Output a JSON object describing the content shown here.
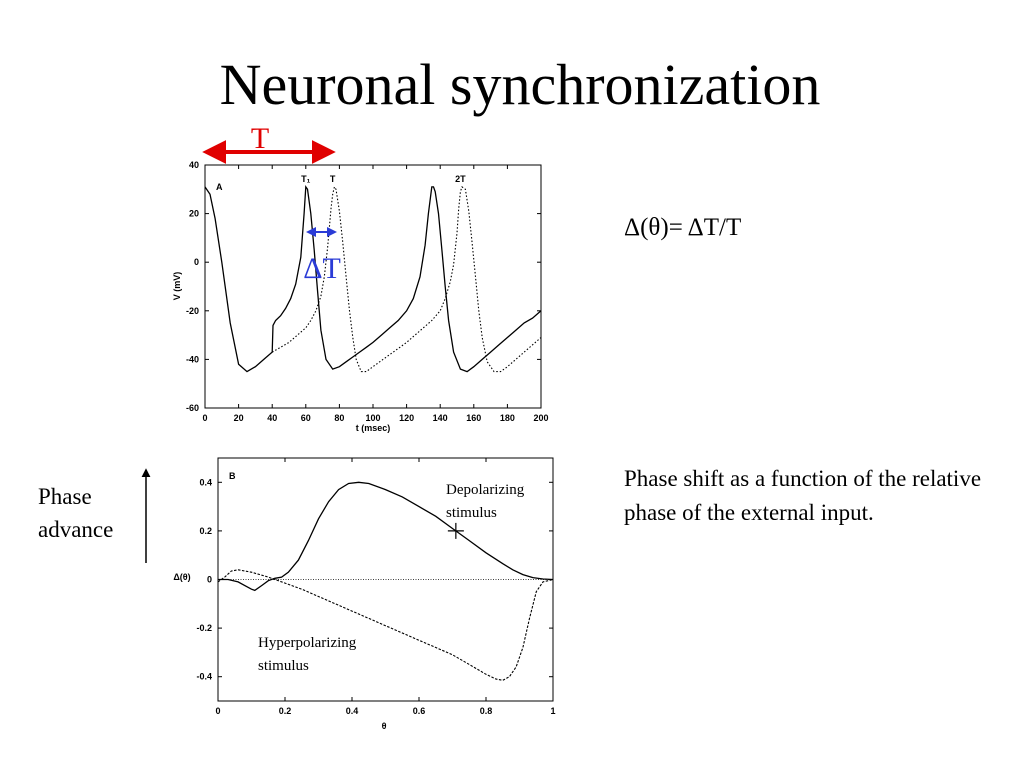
{
  "slide": {
    "title": "Neuronal synchronization",
    "formula": "Δ(θ)= ΔT/T",
    "caption": "Phase shift as a function of the relative phase of the external input.",
    "phase_label": [
      "Phase",
      "advance"
    ]
  },
  "colors": {
    "red_arrow": "#e00000",
    "blue_arrow": "#2a3bd6",
    "blue_text": "#2a3bd6",
    "red_text": "#e00000"
  },
  "chart_data": [
    {
      "type": "line",
      "panel_label": "A",
      "title": "",
      "xlabel": "t (msec)",
      "ylabel": "V (mV)",
      "xlim": [
        0,
        200
      ],
      "ylim": [
        -60,
        40
      ],
      "xticks": [
        0,
        20,
        40,
        60,
        80,
        100,
        120,
        140,
        160,
        180,
        200
      ],
      "yticks": [
        -60,
        -40,
        -20,
        0,
        20,
        40
      ],
      "top_labels": [
        {
          "text": "T₁",
          "x": 60
        },
        {
          "text": "T",
          "x": 76
        },
        {
          "text": "2T",
          "x": 152
        }
      ],
      "annotations": {
        "period_label": "T",
        "shift_label": "ΔT"
      },
      "series": [
        {
          "style": "solid",
          "x": [
            0,
            3,
            6,
            10,
            15,
            20,
            25,
            30,
            35,
            40,
            40.5,
            42,
            45,
            48,
            51,
            54,
            57,
            59,
            60,
            61,
            63,
            65,
            67,
            69,
            72,
            76,
            80,
            84,
            88,
            92,
            96,
            100,
            105,
            110,
            115,
            120,
            124,
            128,
            131,
            133,
            135,
            136,
            137,
            139,
            141,
            143,
            145,
            148,
            152,
            156,
            160,
            165,
            170,
            175,
            180,
            185,
            190,
            195,
            200
          ],
          "y": [
            31,
            28,
            18,
            0,
            -25,
            -42,
            -45,
            -43,
            -40,
            -37,
            -26,
            -24,
            -22,
            -19,
            -15,
            -9,
            2,
            20,
            31,
            30,
            20,
            5,
            -12,
            -28,
            -40,
            -44,
            -43,
            -41,
            -39,
            -37,
            -35,
            -33,
            -30,
            -27,
            -24,
            -20,
            -15,
            -6,
            7,
            20,
            31,
            31,
            29,
            20,
            5,
            -10,
            -24,
            -37,
            -44,
            -45,
            -43,
            -40,
            -37,
            -34,
            -31,
            -28,
            -25,
            -23,
            -20
          ]
        },
        {
          "style": "dotted",
          "x": [
            40,
            45,
            50,
            55,
            60,
            63,
            66,
            69,
            71,
            73,
            74,
            75,
            76,
            77,
            78,
            80,
            82,
            84,
            86,
            88,
            90,
            93,
            96,
            100,
            104,
            108,
            112,
            116,
            120,
            125,
            130,
            135,
            140,
            143,
            146,
            148,
            150,
            151,
            152,
            153,
            155,
            157,
            159,
            161,
            163,
            165,
            168,
            172,
            176,
            180,
            185,
            190,
            195,
            200
          ],
          "y": [
            -37,
            -35,
            -33,
            -30,
            -27,
            -24,
            -20,
            -14,
            -6,
            6,
            14,
            22,
            28,
            31,
            30,
            21,
            8,
            -6,
            -20,
            -31,
            -40,
            -45,
            -45,
            -43,
            -41,
            -39,
            -37,
            -35,
            -33,
            -30,
            -27,
            -24,
            -20,
            -15,
            -8,
            -1,
            12,
            22,
            29,
            31,
            30,
            21,
            8,
            -6,
            -20,
            -31,
            -41,
            -45,
            -45,
            -43,
            -40,
            -37,
            -34,
            -31
          ]
        }
      ]
    },
    {
      "type": "line",
      "panel_label": "B",
      "title": "",
      "xlabel": "θ",
      "ylabel": "Δ(θ)",
      "xlim": [
        0,
        1
      ],
      "ylim": [
        -0.5,
        0.5
      ],
      "xticks": [
        "0",
        "0.2",
        "0.4",
        "0.6",
        "0.8",
        "1"
      ],
      "yticks": [
        "-0.4",
        "-0.2",
        "0",
        "0.2",
        "0.4"
      ],
      "xtick_values": [
        0,
        0.2,
        0.4,
        0.6,
        0.8,
        1
      ],
      "ytick_values": [
        -0.4,
        -0.2,
        0,
        0.2,
        0.4
      ],
      "annotations": {
        "depolarizing": [
          "Depolarizing",
          "stimulus"
        ],
        "hyperpolarizing": [
          "Hyperpolarizing",
          "stimulus"
        ],
        "marker": {
          "x": 0.71,
          "y": 0.2
        }
      },
      "series": [
        {
          "style": "solid",
          "x": [
            0,
            0.03,
            0.06,
            0.08,
            0.1,
            0.11,
            0.13,
            0.15,
            0.17,
            0.19,
            0.21,
            0.24,
            0.27,
            0.3,
            0.33,
            0.36,
            0.39,
            0.42,
            0.45,
            0.5,
            0.55,
            0.6,
            0.65,
            0.7,
            0.75,
            0.8,
            0.85,
            0.88,
            0.91,
            0.94,
            0.97,
            1.0
          ],
          "y": [
            0,
            0,
            -0.01,
            -0.025,
            -0.04,
            -0.045,
            -0.025,
            -0.005,
            0.005,
            0.01,
            0.03,
            0.08,
            0.16,
            0.25,
            0.32,
            0.37,
            0.395,
            0.4,
            0.395,
            0.37,
            0.34,
            0.3,
            0.26,
            0.21,
            0.16,
            0.11,
            0.065,
            0.04,
            0.02,
            0.008,
            0.002,
            0
          ]
        },
        {
          "style": "dashed",
          "x": [
            0,
            0.02,
            0.04,
            0.06,
            0.1,
            0.15,
            0.2,
            0.25,
            0.3,
            0.35,
            0.4,
            0.45,
            0.5,
            0.55,
            0.6,
            0.65,
            0.7,
            0.75,
            0.8,
            0.83,
            0.85,
            0.87,
            0.89,
            0.91,
            0.93,
            0.95,
            0.97,
            1.0
          ],
          "y": [
            -0.01,
            0.01,
            0.035,
            0.04,
            0.03,
            0.01,
            -0.015,
            -0.04,
            -0.07,
            -0.1,
            -0.13,
            -0.16,
            -0.19,
            -0.22,
            -0.25,
            -0.28,
            -0.31,
            -0.35,
            -0.39,
            -0.41,
            -0.415,
            -0.4,
            -0.36,
            -0.28,
            -0.16,
            -0.05,
            -0.01,
            0
          ]
        },
        {
          "style": "dotted-baseline",
          "x": [
            0,
            1
          ],
          "y": [
            0,
            0
          ]
        }
      ]
    }
  ]
}
